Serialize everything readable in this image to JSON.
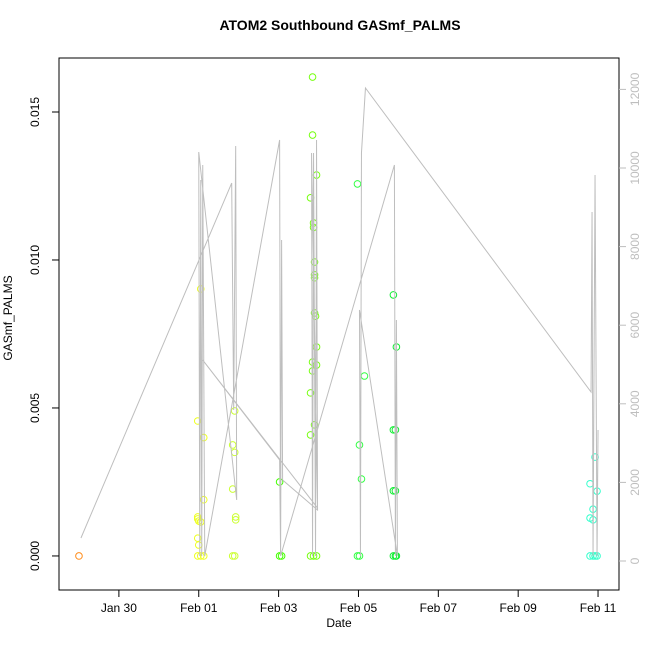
{
  "chart_data": {
    "type": "scatter",
    "title": "ATOM2 Southbound GASmf_PALMS",
    "xlabel": "Date",
    "ylabel": "GASmf_PALMS",
    "xlim": [
      28.5,
      42.525
    ],
    "xticks": [
      {
        "value": 30,
        "label": "Jan 30"
      },
      {
        "value": 32,
        "label": "Feb 01"
      },
      {
        "value": 34,
        "label": "Feb 03"
      },
      {
        "value": 36,
        "label": "Feb 05"
      },
      {
        "value": 38,
        "label": "Feb 07"
      },
      {
        "value": 40,
        "label": "Feb 09"
      },
      {
        "value": 42,
        "label": "Feb 11"
      }
    ],
    "ylim": [
      -0.00115,
      0.016824
    ],
    "yticks": [
      {
        "value": 0,
        "label": "0.000"
      },
      {
        "value": 0.005,
        "label": "0.005"
      },
      {
        "value": 0.01,
        "label": "0.010"
      },
      {
        "value": 0.015,
        "label": "0.015"
      }
    ],
    "y2lim": [
      -738,
      12799
    ],
    "y2ticks": [
      0,
      2000,
      4000,
      6000,
      8000,
      10000,
      12000
    ],
    "y2color": "#bebebe",
    "series": [
      {
        "x": [
          29.0,
          31.975,
          31.975,
          31.975,
          31.975,
          31.975,
          32.0,
          32.0,
          32.05,
          32.05,
          32.05,
          32.125,
          32.125,
          32.125,
          32.85,
          32.85,
          32.85,
          32.9,
          32.9,
          32.9,
          32.925,
          32.925,
          34.025,
          34.025,
          34.075,
          34.8,
          34.8,
          34.8,
          34.8,
          34.85,
          34.85,
          34.85,
          34.85,
          34.875,
          34.875,
          34.875,
          34.9,
          34.9,
          34.9,
          34.9,
          34.9,
          34.925,
          34.95,
          34.95,
          34.95,
          34.95,
          35.975,
          35.975,
          36.025,
          36.025,
          36.075,
          36.15,
          36.875,
          36.875,
          36.875,
          36.875,
          36.925,
          36.925,
          36.925,
          36.95,
          36.95,
          41.8,
          41.8,
          41.8,
          41.875,
          41.875,
          41.875,
          41.925,
          41.925,
          41.975,
          41.975
        ],
        "values": [
          0,
          0.00456,
          0.00132,
          0.00125,
          0.0006,
          0,
          0.00118,
          0.00037,
          0.00902,
          0.00115,
          0,
          0.004,
          0.0019,
          0,
          0.00375,
          0.00226,
          0,
          0.0049,
          0.0035,
          0,
          0.00132,
          0.00122,
          0.0025,
          0,
          0,
          0.0121,
          0.00551,
          0.00409,
          0,
          0.01618,
          0.01422,
          0.00655,
          0.00625,
          0.01125,
          0.0111,
          0,
          0.00993,
          0.0095,
          0.0094,
          0.00821,
          0.00443,
          0.0081,
          0.01287,
          0.00706,
          0.00645,
          0,
          0.01257,
          0,
          0.00375,
          0,
          0.0026,
          0.00608,
          0.00882,
          0.00426,
          0.0022,
          0,
          0.00426,
          0.0022,
          0,
          0.00706,
          0,
          0.00244,
          0.00128,
          0,
          0.00158,
          0.00122,
          0,
          0.00334,
          0,
          0.00219,
          0
        ],
        "colors": [
          "#ff8c1a",
          "#eeff22",
          "#eeff22",
          "#eeff22",
          "#eeff22",
          "#eeff22",
          "#eeff22",
          "#eeff22",
          "#eeff22",
          "#eeff22",
          "#eeff22",
          "#eeff22",
          "#eeff22",
          "#eeff22",
          "#ccff33",
          "#ccff33",
          "#ccff33",
          "#ccff33",
          "#ccff33",
          "#ccff33",
          "#ccff33",
          "#ccff33",
          "#44ff00",
          "#44ff00",
          "#44ff00",
          "#77ff11",
          "#77ff11",
          "#77ff11",
          "#77ff11",
          "#77ff11",
          "#77ff11",
          "#77ff11",
          "#77ff11",
          "#77ff11",
          "#77ff11",
          "#77ff11",
          "#77ff11",
          "#77ff11",
          "#77ff11",
          "#77ff11",
          "#77ff11",
          "#77ff11",
          "#77ff11",
          "#77ff11",
          "#77ff11",
          "#77ff11",
          "#33ff44",
          "#33ff44",
          "#33ff44",
          "#33ff44",
          "#33ff44",
          "#33ff44",
          "#11ee33",
          "#11ee33",
          "#11ee33",
          "#11ee33",
          "#11ee33",
          "#11ee33",
          "#11ee33",
          "#11ee33",
          "#11ee33",
          "#33ffcc",
          "#33ffcc",
          "#33ffcc",
          "#33ffcc",
          "#33ffcc",
          "#33ffcc",
          "#33ffcc",
          "#33ffcc",
          "#33ffcc",
          "#33ffcc"
        ]
      },
      {
        "type": "line",
        "axis": "y2",
        "color": "#bebebe",
        "x": [
          29.05,
          32.825,
          32.875,
          32.925,
          32.95,
          32.0,
          32.025,
          32.05,
          32.075,
          32.1,
          32.125,
          32.15,
          34.025,
          34.05,
          34.075,
          34.1,
          34.975,
          34.825,
          34.85,
          34.875,
          34.925,
          34.95,
          34.975,
          32.1,
          34.025,
          34.05,
          36.9,
          36.925,
          36.95,
          36.975,
          36.025,
          36.05,
          36.075,
          36.175,
          41.825,
          41.85,
          41.875,
          41.925,
          41.975,
          42.0
        ],
        "values": [
          585,
          9618,
          3842,
          10560,
          1552,
          10407,
          127,
          9695,
          127,
          10076,
          5114,
          127,
          10712,
          127,
          8168,
          2061,
          1298,
          10382,
          127,
          10382,
          127,
          10712,
          1349,
          5114,
          2570,
          127,
          10076,
          127,
          6132,
          127,
          6387,
          127,
          10382,
          12036,
          4300,
          8880,
          127,
          9822,
          127,
          3333
        ]
      }
    ]
  }
}
